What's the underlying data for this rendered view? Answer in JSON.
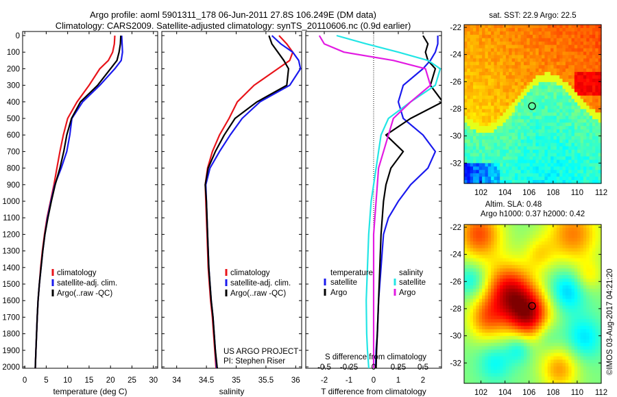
{
  "title": {
    "line1": "Argo profile: aoml 5901311_178 06-Jun-2011 27.8S 106.249E (DM data)",
    "line2": "Climatology: CARS2009. Satellite-adjusted climatology: synTS_20110606.nc (0.9d earlier)"
  },
  "colors": {
    "climatology": "#e8141a",
    "satellite": "#1a1aee",
    "argo": "#000000",
    "satellite_s": "#22e5e5",
    "argo_s": "#e21ae2"
  },
  "chart_data": [
    {
      "type": "line",
      "panel": "temperature",
      "xlabel": "temperature (deg C)",
      "ylabel": "",
      "xlim": [
        -0.5,
        31
      ],
      "ylim": [
        2080,
        0
      ],
      "xticks": [
        0,
        5,
        10,
        15,
        20,
        25,
        30
      ],
      "yticks": [
        0,
        100,
        200,
        300,
        400,
        500,
        600,
        700,
        800,
        900,
        1000,
        1100,
        1200,
        1300,
        1400,
        1500,
        1600,
        1700,
        1800,
        1900,
        2000
      ],
      "legend": [
        "climatology",
        "satellite-adj. clim.",
        "Argo(..raw -QC)"
      ],
      "series": [
        {
          "name": "climatology",
          "color": "#e8141a",
          "x": [
            21.0,
            20.9,
            20.5,
            19.5,
            17.5,
            15.0,
            12.2,
            10.0,
            9.0,
            8.2,
            7.5,
            6.8,
            6.0,
            5.2,
            4.6,
            4.1,
            3.7,
            3.4,
            3.1,
            2.9,
            2.6,
            2.4
          ],
          "y": [
            0,
            50,
            100,
            150,
            200,
            300,
            400,
            500,
            600,
            700,
            800,
            900,
            1000,
            1100,
            1200,
            1300,
            1400,
            1500,
            1600,
            1700,
            1900,
            2050
          ]
        },
        {
          "name": "satellite-adj. clim.",
          "color": "#1a1aee",
          "x": [
            22.6,
            22.7,
            22.8,
            22.5,
            21.0,
            17.5,
            13.5,
            11.0,
            10.5,
            9.8,
            8.5,
            7.0,
            6.1,
            5.3,
            4.7,
            4.2,
            3.8,
            3.4,
            3.1,
            2.9,
            2.6,
            2.4
          ],
          "y": [
            0,
            50,
            100,
            150,
            200,
            300,
            400,
            500,
            600,
            700,
            800,
            900,
            1000,
            1100,
            1200,
            1300,
            1400,
            1500,
            1600,
            1700,
            1900,
            2050
          ]
        },
        {
          "name": "Argo(..raw -QC)",
          "color": "#000000",
          "x": [
            22.4,
            22.3,
            22.0,
            21.5,
            20.0,
            17.0,
            13.0,
            10.9,
            9.8,
            9.1,
            8.2,
            7.1,
            6.2,
            5.4,
            4.7,
            4.2,
            3.8,
            3.4,
            3.1,
            2.9,
            2.6,
            2.4
          ],
          "y": [
            0,
            50,
            100,
            150,
            200,
            300,
            400,
            500,
            600,
            700,
            800,
            900,
            1000,
            1100,
            1200,
            1300,
            1400,
            1500,
            1600,
            1700,
            1900,
            2050
          ]
        }
      ]
    },
    {
      "type": "line",
      "panel": "salinity",
      "xlabel": "salinity",
      "ylabel": "",
      "xlim": [
        33.75,
        36.1
      ],
      "ylim": [
        2080,
        0
      ],
      "xticks": [
        34,
        34.5,
        35,
        35.5,
        36
      ],
      "legend": [
        "climatology",
        "satellite-adj. clim.",
        "Argo(..raw -QC)"
      ],
      "annotation": [
        "US ARGO PROJECT",
        "PI: Stephen Riser"
      ],
      "series": [
        {
          "name": "climatology",
          "color": "#e8141a",
          "x": [
            35.72,
            35.85,
            35.95,
            35.9,
            35.7,
            35.3,
            35.02,
            34.88,
            34.72,
            34.6,
            34.52,
            34.48,
            34.49,
            34.51,
            34.53,
            34.55,
            34.57,
            34.6,
            34.62,
            34.64,
            34.66,
            34.69
          ],
          "y": [
            0,
            50,
            100,
            150,
            200,
            300,
            400,
            500,
            600,
            700,
            800,
            900,
            1000,
            1200,
            1400,
            1500,
            1600,
            1700,
            1800,
            1900,
            2000,
            2050
          ]
        },
        {
          "name": "satellite-adj. clim.",
          "color": "#1a1aee",
          "x": [
            35.6,
            35.75,
            35.95,
            36.05,
            36.08,
            35.9,
            35.4,
            35.1,
            34.9,
            34.72,
            34.56,
            34.49,
            34.5,
            34.52,
            34.54,
            34.56,
            34.58,
            34.61,
            34.63,
            34.65,
            34.67,
            34.7
          ],
          "y": [
            0,
            50,
            100,
            150,
            200,
            300,
            400,
            500,
            600,
            700,
            800,
            900,
            1000,
            1200,
            1400,
            1500,
            1600,
            1700,
            1800,
            1900,
            2000,
            2050
          ]
        },
        {
          "name": "Argo(..raw -QC)",
          "color": "#000000",
          "x": [
            35.55,
            35.6,
            35.7,
            35.8,
            35.88,
            35.85,
            35.35,
            34.98,
            34.8,
            34.65,
            34.53,
            34.48,
            34.5,
            34.52,
            34.54,
            34.56,
            34.58,
            34.61,
            34.63,
            34.65,
            34.68,
            34.7
          ],
          "y": [
            0,
            50,
            100,
            150,
            200,
            300,
            400,
            500,
            600,
            700,
            800,
            900,
            1000,
            1200,
            1400,
            1500,
            1600,
            1700,
            1800,
            1900,
            2000,
            2050
          ]
        }
      ]
    },
    {
      "type": "line",
      "panel": "differences",
      "xlabel": "T difference from climatology",
      "xlabel_top": "S difference from climatology",
      "xlim": [
        -2.75,
        2.75
      ],
      "ylim": [
        2080,
        0
      ],
      "xticks_T": [
        -2,
        -1,
        0,
        1,
        2
      ],
      "xticks_S": [
        -0.5,
        -0.25,
        0,
        0.25,
        0.5
      ],
      "legend": {
        "temperature_header": "temperature",
        "salinity_header": "salinity",
        "temperature": [
          "satellite",
          "Argo"
        ],
        "salinity": [
          "satellite",
          "Argo"
        ]
      },
      "series": [
        {
          "name": "satellite",
          "group": "temperature",
          "color": "#1a1aee",
          "x": [
            2.6,
            2.6,
            2.5,
            2.3,
            2.0,
            1.2,
            1.0,
            1.2,
            2.0,
            2.5,
            2.2,
            1.5,
            1.0,
            0.6,
            0.4,
            0.3,
            0.2,
            0.15,
            0.1,
            0.08,
            0.06
          ],
          "y": [
            0,
            50,
            100,
            150,
            200,
            300,
            400,
            500,
            600,
            700,
            800,
            900,
            1000,
            1100,
            1200,
            1400,
            1600,
            1800,
            1900,
            2000,
            2050
          ]
        },
        {
          "name": "Argo",
          "group": "temperature",
          "color": "#000000",
          "x": [
            2.0,
            2.2,
            2.1,
            2.2,
            2.5,
            2.3,
            2.8,
            1.5,
            0.5,
            1.2,
            0.7,
            0.5,
            0.4,
            0.35,
            0.3,
            0.25,
            0.2,
            0.15,
            0.12,
            0.1,
            0.1
          ],
          "y": [
            0,
            50,
            100,
            150,
            200,
            300,
            400,
            500,
            600,
            700,
            800,
            900,
            1000,
            1100,
            1200,
            1400,
            1600,
            1800,
            1900,
            2000,
            2050
          ]
        },
        {
          "name": "satellite",
          "group": "salinity",
          "color": "#22e5e5",
          "x": [
            -1.5,
            -0.3,
            1.0,
            2.2,
            2.7,
            2.5,
            1.5,
            0.6,
            0.3,
            0.2,
            0.1,
            0.0,
            -0.1,
            -0.15,
            -0.2,
            -0.25,
            -0.3,
            -0.28,
            -0.25,
            -0.2,
            -0.22
          ],
          "y": [
            0,
            50,
            100,
            150,
            200,
            300,
            400,
            500,
            600,
            700,
            800,
            900,
            1000,
            1100,
            1200,
            1400,
            1600,
            1800,
            1900,
            2000,
            2050
          ]
        },
        {
          "name": "Argo",
          "group": "salinity",
          "color": "#e21ae2",
          "x": [
            -2.2,
            -2.0,
            -1.2,
            0.8,
            2.1,
            2.3,
            1.5,
            0.8,
            0.6,
            0.4,
            0.2,
            0.15,
            0.1,
            0.05,
            0.0,
            0.0,
            0.0,
            0.0,
            0.0,
            0.0,
            0.0
          ],
          "y": [
            0,
            50,
            100,
            150,
            200,
            300,
            400,
            500,
            600,
            700,
            800,
            900,
            1000,
            1100,
            1200,
            1400,
            1600,
            1800,
            1900,
            2000,
            2050
          ]
        }
      ]
    },
    {
      "type": "heatmap",
      "panel": "sst_map",
      "title": "sat. SST: 22.9 Argo: 22.5",
      "xlim": [
        100.6,
        112
      ],
      "ylim": [
        -33.5,
        -21.8
      ],
      "xticks": [
        102,
        104,
        106,
        108,
        110,
        112
      ],
      "yticks": [
        -22,
        -24,
        -26,
        -28,
        -30,
        -32
      ],
      "marker": {
        "lon": 106.249,
        "lat": -27.8
      }
    },
    {
      "type": "heatmap",
      "panel": "sla_map",
      "title": [
        "Altim. SLA: 0.48",
        "Argo h1000: 0.37 h2000: 0.42"
      ],
      "xlim": [
        100.6,
        112
      ],
      "ylim": [
        -33.5,
        -21.8
      ],
      "xticks": [
        102,
        104,
        106,
        108,
        110,
        112
      ],
      "yticks": [
        -22,
        -24,
        -26,
        -28,
        -30,
        -32
      ],
      "marker": {
        "lon": 106.249,
        "lat": -27.8
      }
    }
  ],
  "footer": "©IMOS 03-Aug-2017 04:21:20"
}
